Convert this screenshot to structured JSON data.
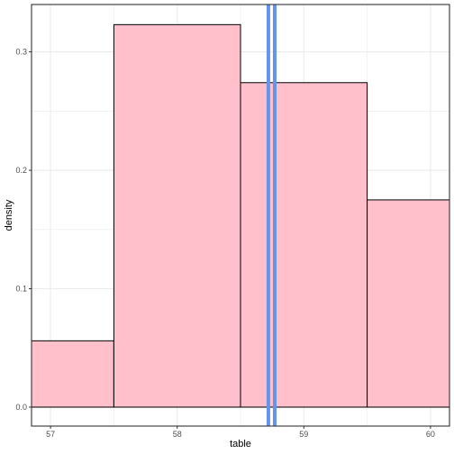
{
  "chart_data": {
    "type": "bar",
    "subtype": "histogram",
    "title": "",
    "xlabel": "table",
    "ylabel": "density",
    "xlim": [
      56.85,
      60.15
    ],
    "ylim": [
      -0.016,
      0.34
    ],
    "x_ticks": [
      57,
      58,
      59,
      60
    ],
    "x_tick_labels": [
      "57",
      "58",
      "59",
      "60"
    ],
    "y_ticks": [
      0.0,
      0.1,
      0.2,
      0.3
    ],
    "y_tick_labels": [
      "0.0",
      "0.1",
      "0.2",
      "0.3"
    ],
    "grid": true,
    "bins": [
      {
        "x0": 56.85,
        "x1": 57.5,
        "density": 0.056
      },
      {
        "x0": 57.5,
        "x1": 58.5,
        "density": 0.323
      },
      {
        "x0": 58.5,
        "x1": 59.5,
        "density": 0.274
      },
      {
        "x0": 59.5,
        "x1": 60.15,
        "density": 0.175
      }
    ],
    "vlines": [
      {
        "x": 58.72,
        "color": "#6495ED"
      },
      {
        "x": 58.77,
        "color": "#6495ED"
      }
    ],
    "colors": {
      "bar_fill": "#FFC0CB",
      "bar_stroke": "#000000",
      "vline": "#6495ED",
      "grid": "#EBEBEB",
      "panel_border": "#333333",
      "zero_line": "#000000"
    }
  }
}
